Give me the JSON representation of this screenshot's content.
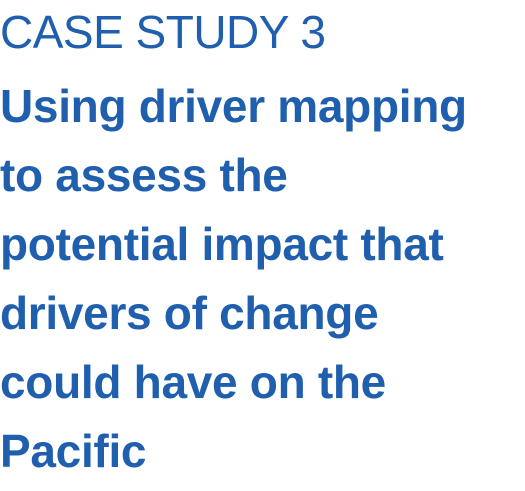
{
  "heading": {
    "eyebrow": "CASE STUDY 3",
    "title_lines": [
      "Using driver mapping",
      "to assess the",
      "potential impact that",
      "drivers of change",
      "could have on the",
      "Pacific"
    ]
  },
  "colors": {
    "text_blue": "#1f5fad"
  }
}
